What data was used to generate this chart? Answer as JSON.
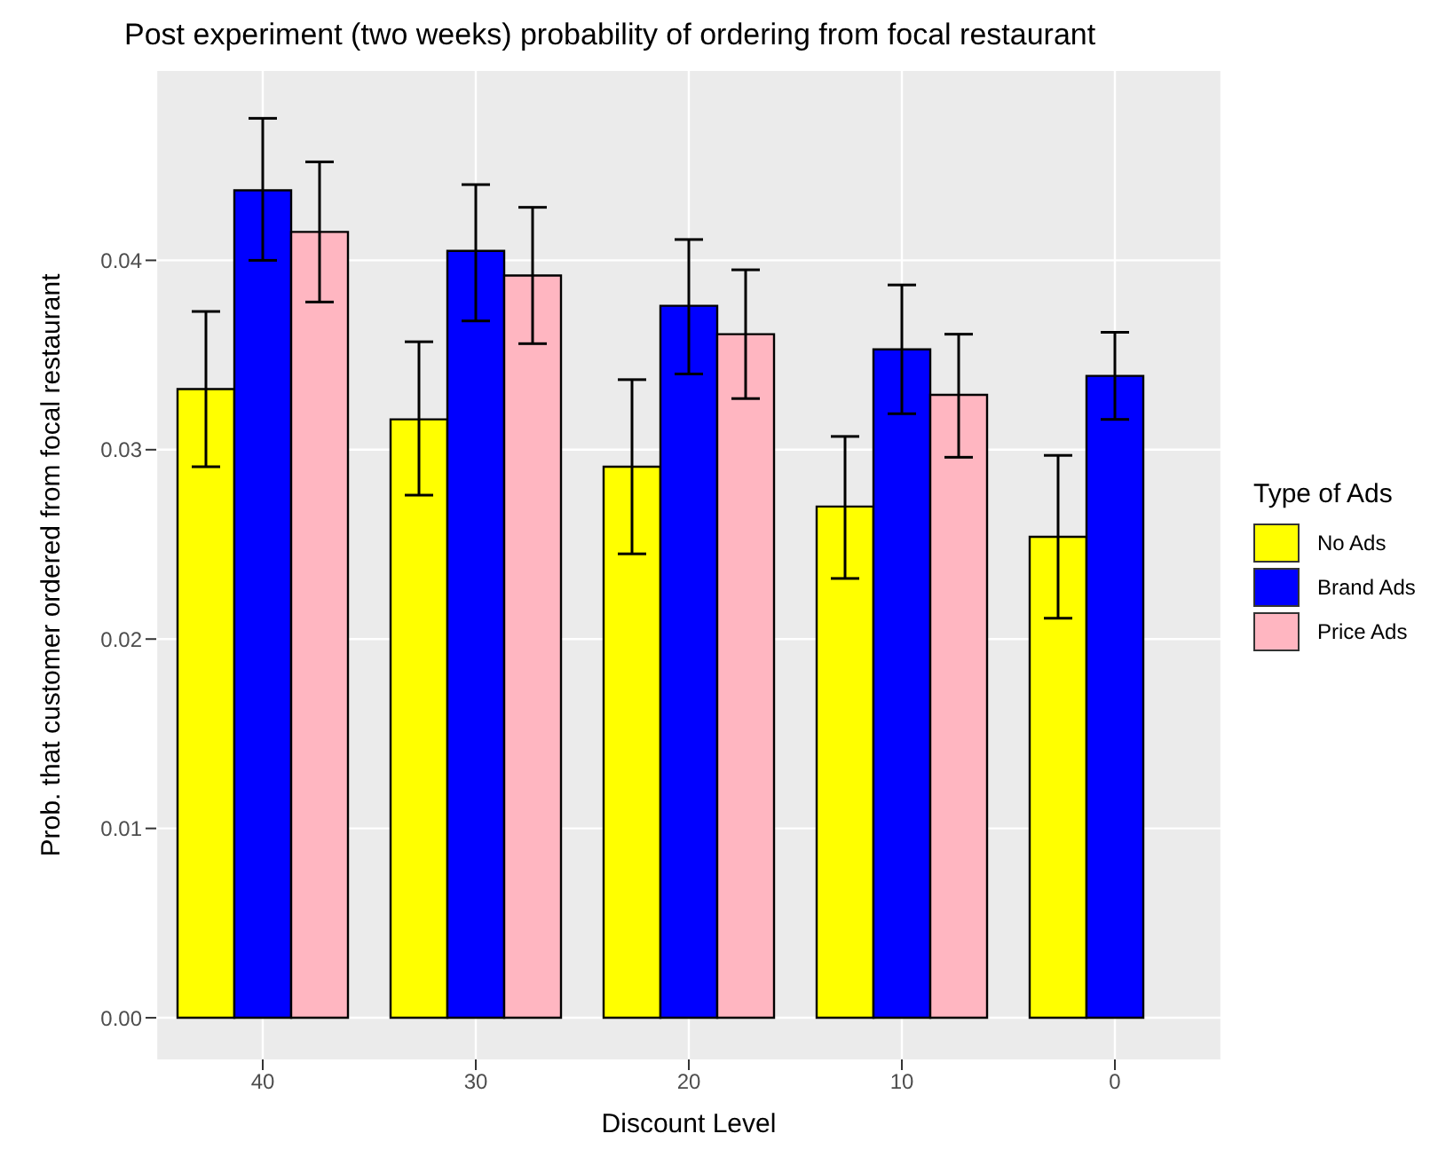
{
  "chart_data": {
    "type": "bar",
    "title": "Post experiment (two weeks) probability of ordering from focal restaurant",
    "xlabel": "Discount Level",
    "ylabel": "Prob. that customer ordered from focal restaurant",
    "legend_title": "Type of Ads",
    "categories": [
      "40",
      "30",
      "20",
      "10",
      "0"
    ],
    "series": [
      {
        "name": "No Ads",
        "color": "#ffff00",
        "values": [
          0.0332,
          0.0316,
          0.0291,
          0.027,
          0.0254
        ],
        "errors": [
          [
            0.0291,
            0.0373
          ],
          [
            0.0276,
            0.0357
          ],
          [
            0.0245,
            0.0337
          ],
          [
            0.0232,
            0.0307
          ],
          [
            0.0211,
            0.0297
          ]
        ]
      },
      {
        "name": "Brand Ads",
        "color": "#0000ff",
        "values": [
          0.0437,
          0.0405,
          0.0376,
          0.0353,
          0.0339
        ],
        "errors": [
          [
            0.04,
            0.0475
          ],
          [
            0.0368,
            0.044
          ],
          [
            0.034,
            0.0411
          ],
          [
            0.0319,
            0.0387
          ],
          [
            0.0316,
            0.0362
          ]
        ]
      },
      {
        "name": "Price Ads",
        "color": "#ffb6c1",
        "values": [
          0.0415,
          0.0392,
          0.0361,
          0.0329,
          null
        ],
        "errors": [
          [
            0.0378,
            0.0452
          ],
          [
            0.0356,
            0.0428
          ],
          [
            0.0327,
            0.0395
          ],
          [
            0.0296,
            0.0361
          ],
          null
        ]
      }
    ],
    "ylim": [
      -0.0022,
      0.05
    ],
    "yticks": [
      {
        "value": 0,
        "label": "0.00"
      },
      {
        "value": 0.01,
        "label": "0.01"
      },
      {
        "value": 0.02,
        "label": "0.02"
      },
      {
        "value": 0.03,
        "label": "0.03"
      },
      {
        "value": 0.04,
        "label": "0.04"
      }
    ],
    "grid": true,
    "legend": "right"
  }
}
